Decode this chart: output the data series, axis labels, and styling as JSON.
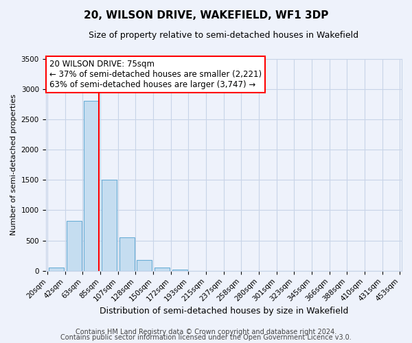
{
  "title": "20, WILSON DRIVE, WAKEFIELD, WF1 3DP",
  "subtitle": "Size of property relative to semi-detached houses in Wakefield",
  "xlabel": "Distribution of semi-detached houses by size in Wakefield",
  "ylabel": "Number of semi-detached properties",
  "bin_labels": [
    "20sqm",
    "42sqm",
    "63sqm",
    "85sqm",
    "107sqm",
    "128sqm",
    "150sqm",
    "172sqm",
    "193sqm",
    "215sqm",
    "237sqm",
    "258sqm",
    "280sqm",
    "301sqm",
    "323sqm",
    "345sqm",
    "366sqm",
    "388sqm",
    "410sqm",
    "431sqm",
    "453sqm"
  ],
  "bar_values": [
    60,
    820,
    2800,
    1500,
    550,
    185,
    60,
    25,
    0,
    0,
    0,
    0,
    0,
    0,
    0,
    0,
    0,
    0,
    0,
    0
  ],
  "bar_color": "#c5ddf0",
  "bar_edge_color": "#6aaed6",
  "property_line_color": "red",
  "property_bar_index": 2,
  "ylim": [
    0,
    3500
  ],
  "yticks": [
    0,
    500,
    1000,
    1500,
    2000,
    2500,
    3000,
    3500
  ],
  "annotation_title": "20 WILSON DRIVE: 75sqm",
  "annotation_line1": "← 37% of semi-detached houses are smaller (2,221)",
  "annotation_line2": "63% of semi-detached houses are larger (3,747) →",
  "annotation_box_color": "white",
  "annotation_box_edge": "red",
  "footer1": "Contains HM Land Registry data © Crown copyright and database right 2024.",
  "footer2": "Contains public sector information licensed under the Open Government Licence v3.0.",
  "background_color": "#eef2fb",
  "plot_bg_color": "#eef2fb",
  "grid_color": "#c8d4e8",
  "title_fontsize": 11,
  "subtitle_fontsize": 9,
  "ylabel_fontsize": 8,
  "xlabel_fontsize": 9,
  "tick_fontsize": 7.5,
  "annotation_fontsize": 8.5,
  "footer_fontsize": 7
}
